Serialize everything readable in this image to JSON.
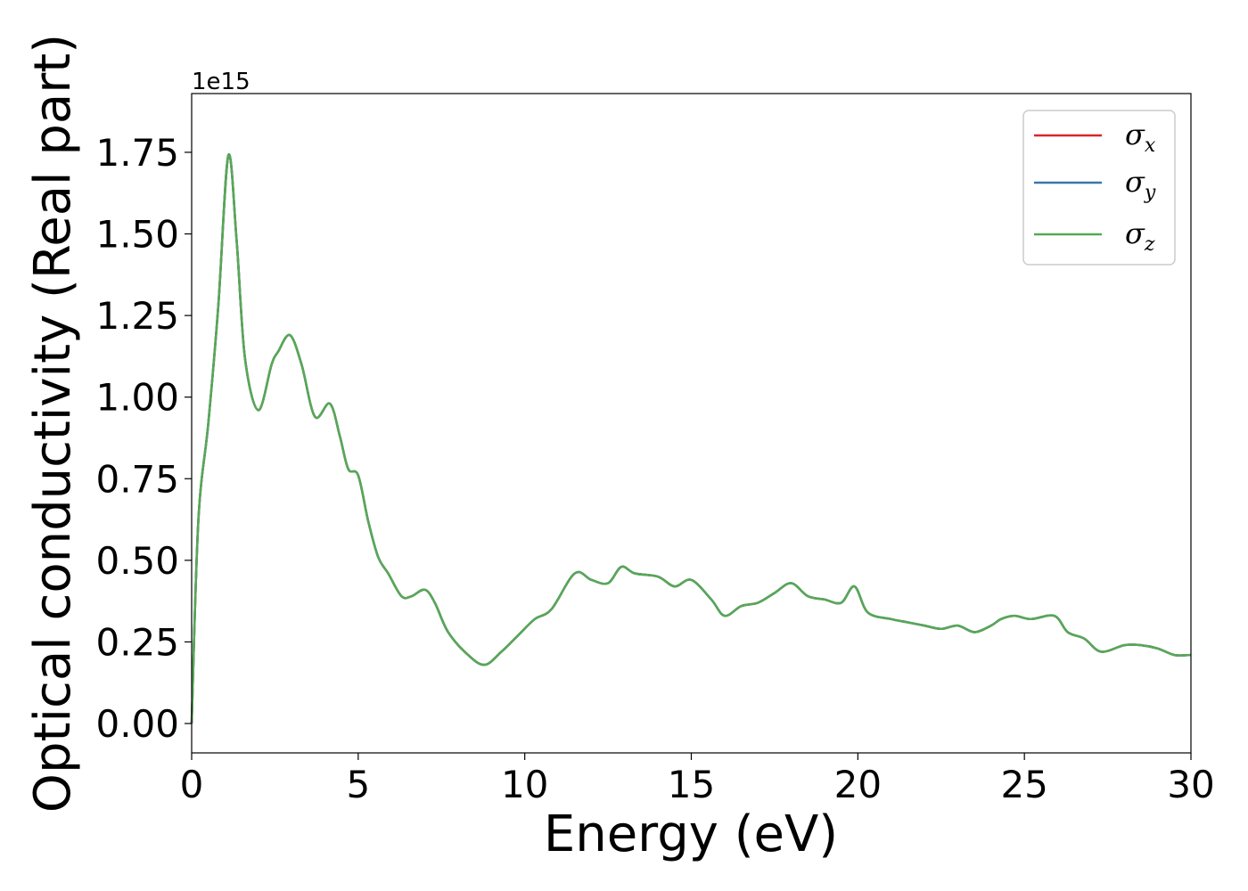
{
  "chart_data": {
    "type": "line",
    "title": "",
    "xlabel": "Energy (eV)",
    "ylabel": "Optical conductivity (Real part)",
    "y_offset_label": "1e15",
    "xlim": [
      0,
      30
    ],
    "ylim": [
      -0.09,
      1.93
    ],
    "xticks": [
      0,
      5,
      10,
      15,
      20,
      25,
      30
    ],
    "xtick_labels": [
      "0",
      "5",
      "10",
      "15",
      "20",
      "25",
      "30"
    ],
    "yticks": [
      0,
      0.25,
      0.5,
      0.75,
      1.0,
      1.25,
      1.5,
      1.75
    ],
    "ytick_labels": [
      "0.00",
      "0.25",
      "0.50",
      "0.75",
      "1.00",
      "1.25",
      "1.50",
      "1.75"
    ],
    "grid": false,
    "legend_position": "top-right",
    "series_colors": [
      "#d62728",
      "#3b75af",
      "#55a955"
    ],
    "x": [
      0,
      0.2,
      0.5,
      0.8,
      1.1,
      1.35,
      1.6,
      2.0,
      2.4,
      2.6,
      2.95,
      3.3,
      3.7,
      4.15,
      4.45,
      4.7,
      5.0,
      5.3,
      5.6,
      5.9,
      6.3,
      6.6,
      7.0,
      7.3,
      7.7,
      8.3,
      8.8,
      9.3,
      9.8,
      10.3,
      10.8,
      11.5,
      12.0,
      12.5,
      12.9,
      13.3,
      14.0,
      14.5,
      15.0,
      15.6,
      16.0,
      16.5,
      17.0,
      17.5,
      18.0,
      18.5,
      19.0,
      19.5,
      19.9,
      20.3,
      21.0,
      21.5,
      22.0,
      22.5,
      23.0,
      23.5,
      24.0,
      24.3,
      24.7,
      25.2,
      25.9,
      26.3,
      26.8,
      27.3,
      28.0,
      28.5,
      29.0,
      29.5,
      30.0
    ],
    "series": [
      {
        "name": "σx",
        "values": [
          0.0,
          0.62,
          0.92,
          1.28,
          1.74,
          1.48,
          1.12,
          0.96,
          1.1,
          1.14,
          1.19,
          1.1,
          0.94,
          0.98,
          0.88,
          0.78,
          0.76,
          0.62,
          0.51,
          0.46,
          0.39,
          0.39,
          0.41,
          0.37,
          0.28,
          0.21,
          0.18,
          0.22,
          0.27,
          0.32,
          0.35,
          0.46,
          0.44,
          0.43,
          0.48,
          0.46,
          0.45,
          0.42,
          0.44,
          0.38,
          0.33,
          0.36,
          0.37,
          0.4,
          0.43,
          0.39,
          0.38,
          0.37,
          0.42,
          0.34,
          0.32,
          0.31,
          0.3,
          0.29,
          0.3,
          0.28,
          0.3,
          0.32,
          0.33,
          0.32,
          0.33,
          0.28,
          0.26,
          0.22,
          0.24,
          0.24,
          0.23,
          0.21,
          0.21
        ]
      },
      {
        "name": "σy",
        "values": [
          0.0,
          0.62,
          0.92,
          1.28,
          1.74,
          1.48,
          1.12,
          0.96,
          1.1,
          1.14,
          1.19,
          1.1,
          0.94,
          0.98,
          0.88,
          0.78,
          0.76,
          0.62,
          0.51,
          0.46,
          0.39,
          0.39,
          0.41,
          0.37,
          0.28,
          0.21,
          0.18,
          0.22,
          0.27,
          0.32,
          0.35,
          0.46,
          0.44,
          0.43,
          0.48,
          0.46,
          0.45,
          0.42,
          0.44,
          0.38,
          0.33,
          0.36,
          0.37,
          0.4,
          0.43,
          0.39,
          0.38,
          0.37,
          0.42,
          0.34,
          0.32,
          0.31,
          0.3,
          0.29,
          0.3,
          0.28,
          0.3,
          0.32,
          0.33,
          0.32,
          0.33,
          0.28,
          0.26,
          0.22,
          0.24,
          0.24,
          0.23,
          0.21,
          0.21
        ]
      },
      {
        "name": "σz",
        "values": [
          0.0,
          0.62,
          0.92,
          1.28,
          1.74,
          1.48,
          1.12,
          0.96,
          1.1,
          1.14,
          1.19,
          1.1,
          0.94,
          0.98,
          0.88,
          0.78,
          0.76,
          0.62,
          0.51,
          0.46,
          0.39,
          0.39,
          0.41,
          0.37,
          0.28,
          0.21,
          0.18,
          0.22,
          0.27,
          0.32,
          0.35,
          0.46,
          0.44,
          0.43,
          0.48,
          0.46,
          0.45,
          0.42,
          0.44,
          0.38,
          0.33,
          0.36,
          0.37,
          0.4,
          0.43,
          0.39,
          0.38,
          0.37,
          0.42,
          0.34,
          0.32,
          0.31,
          0.3,
          0.29,
          0.3,
          0.28,
          0.3,
          0.32,
          0.33,
          0.32,
          0.33,
          0.28,
          0.26,
          0.22,
          0.24,
          0.24,
          0.23,
          0.21,
          0.21
        ]
      }
    ]
  },
  "legend": {
    "entries": [
      {
        "symbol": "σ",
        "sub": "x"
      },
      {
        "symbol": "σ",
        "sub": "y"
      },
      {
        "symbol": "σ",
        "sub": "z"
      }
    ]
  }
}
